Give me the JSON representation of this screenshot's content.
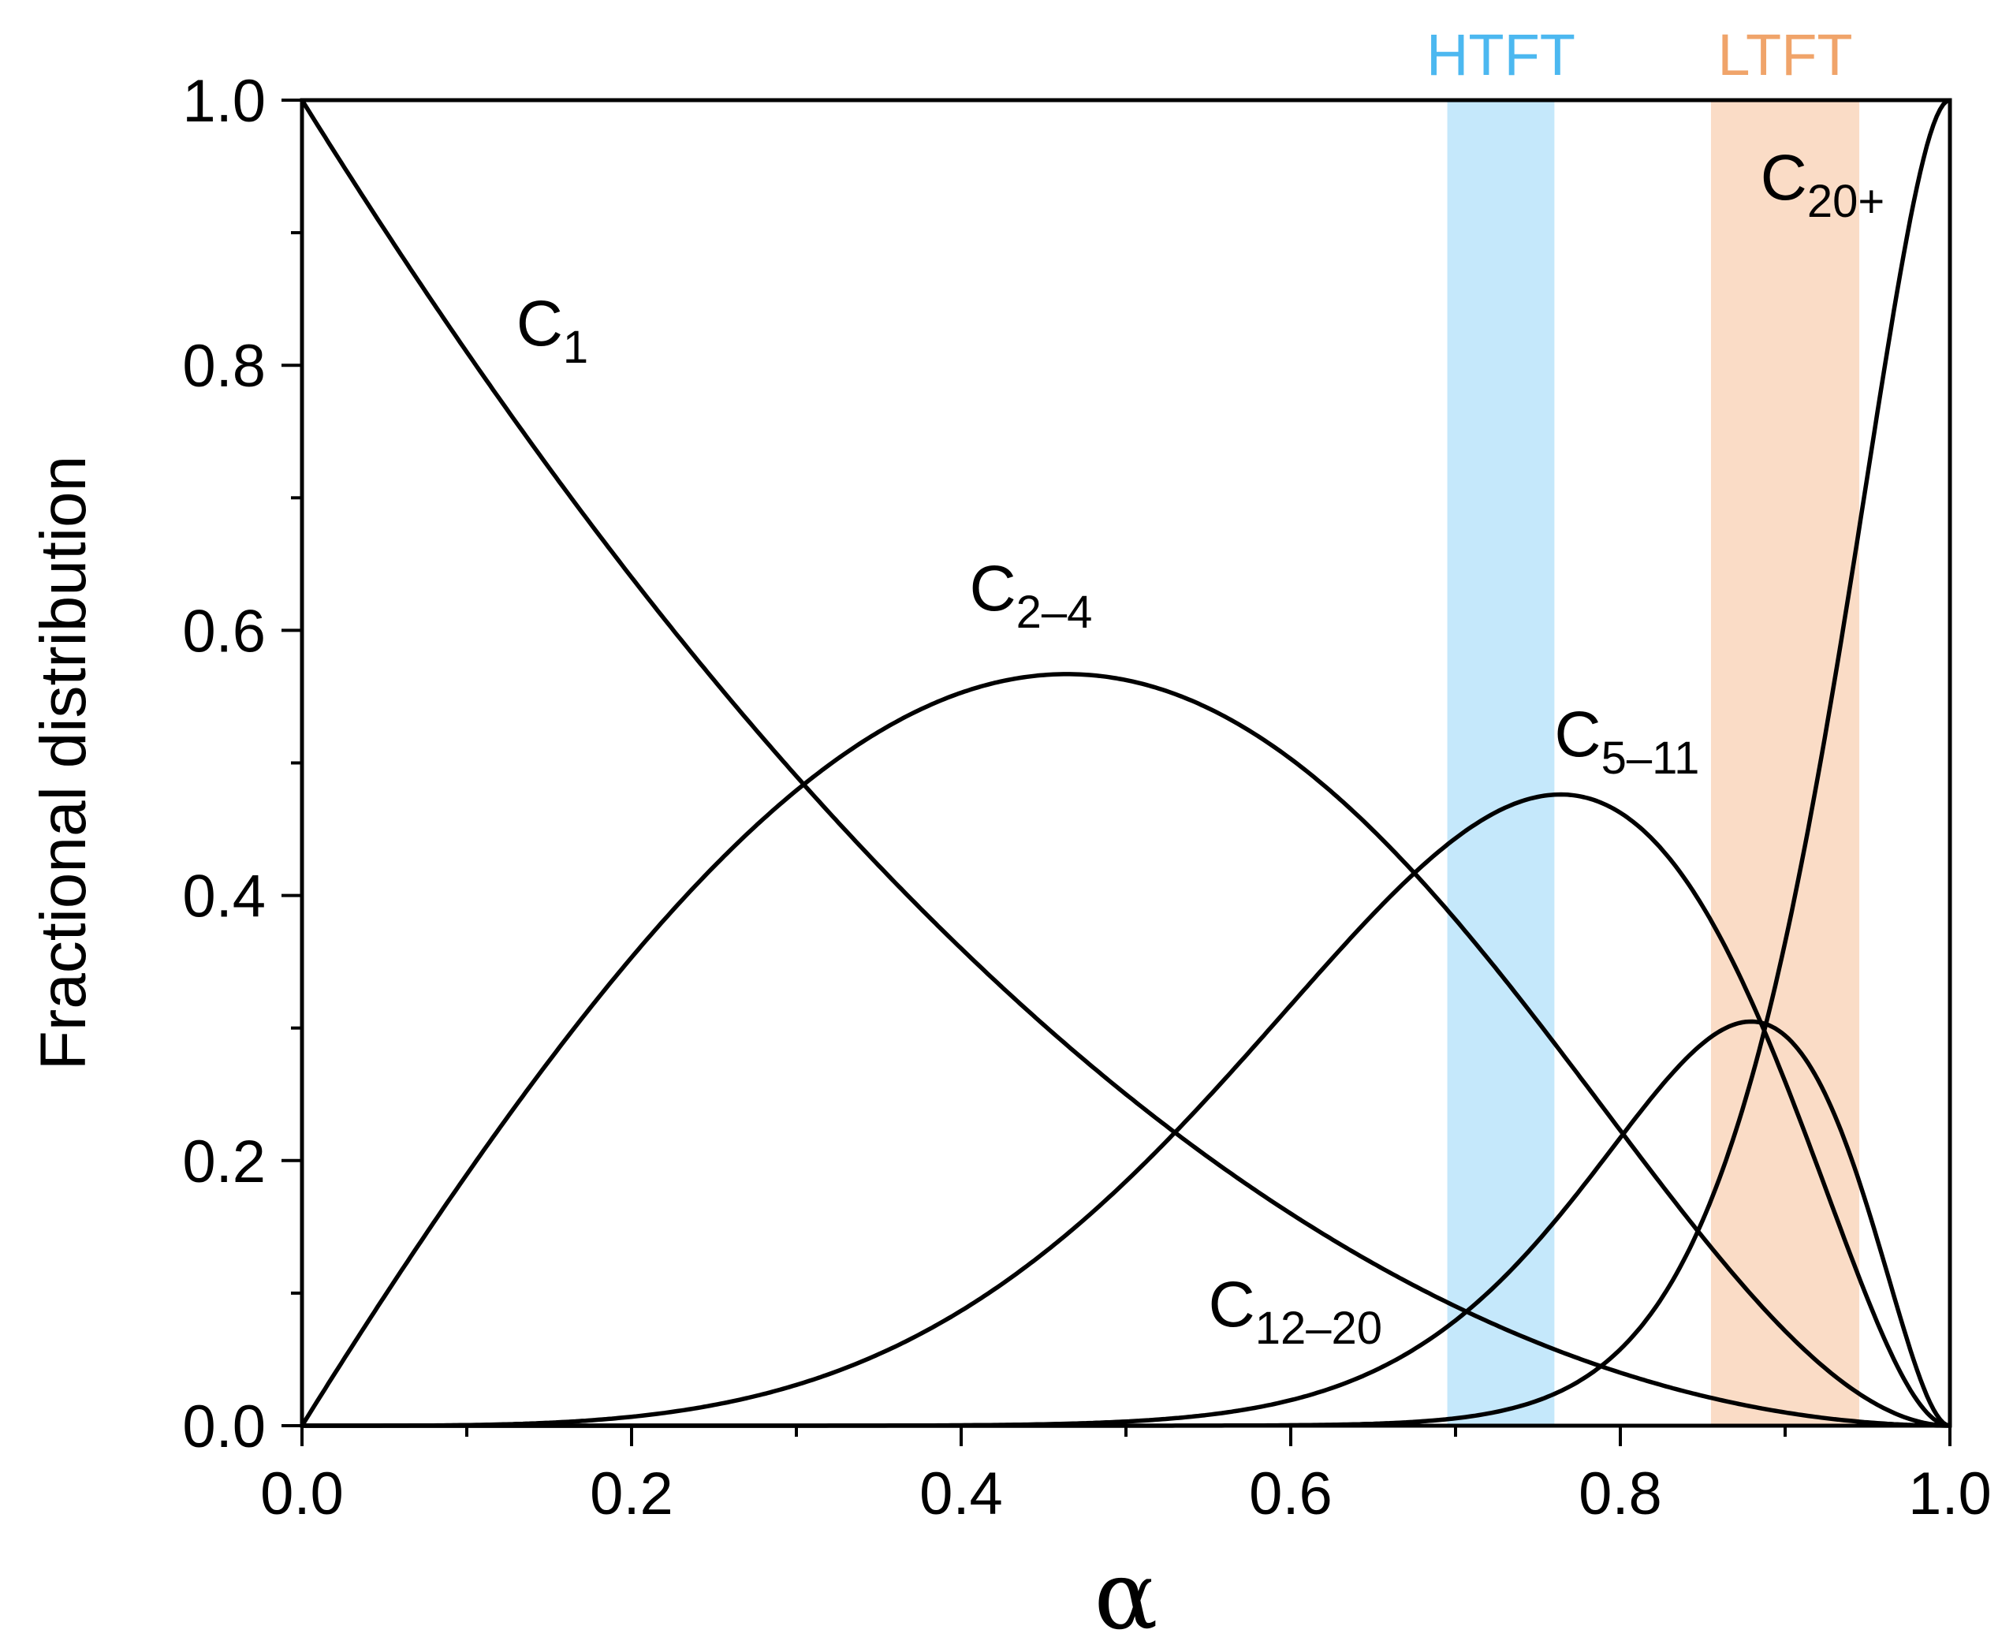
{
  "chart_data": {
    "type": "line",
    "xlabel": "α",
    "ylabel": "Fractional distribution",
    "xlim": [
      0.0,
      1.0
    ],
    "ylim": [
      0.0,
      1.0
    ],
    "x_ticks": [
      "0.0",
      "0.2",
      "0.4",
      "0.6",
      "0.8",
      "1.0"
    ],
    "y_ticks": [
      "0.0",
      "0.2",
      "0.4",
      "0.6",
      "0.8",
      "1.0"
    ],
    "grid": false,
    "legend": "none",
    "bands": [
      {
        "label": "HTFT",
        "x_range": [
          0.695,
          0.76
        ],
        "color": "#bfe6fb",
        "label_color": "#4cb8f0"
      },
      {
        "label": "LTFT",
        "x_range": [
          0.855,
          0.945
        ],
        "color": "#fad8c0",
        "label_color": "#f0a46a"
      }
    ],
    "series": [
      {
        "name": "C1",
        "label_main": "C",
        "label_sub": "1",
        "label_at": [
          0.13,
          0.815
        ]
      },
      {
        "name": "C2–4",
        "label_main": "C",
        "label_sub": "2–4",
        "label_at": [
          0.405,
          0.615
        ]
      },
      {
        "name": "C5–11",
        "label_main": "C",
        "label_sub": "5–11",
        "label_at": [
          0.76,
          0.505
        ]
      },
      {
        "name": "C12–20",
        "label_main": "C",
        "label_sub": "12–20",
        "label_at": [
          0.55,
          0.075
        ]
      },
      {
        "name": "C20+",
        "label_main": "C",
        "label_sub": "20+",
        "label_at": [
          0.885,
          0.925
        ]
      }
    ],
    "curve_model": "Anderson-Schulz-Flory weight fraction W_n = n(1-α)^2 α^(n-1), summed over carbon-number ranges 1, 2–4, 5–11, 12–20, 21+"
  }
}
